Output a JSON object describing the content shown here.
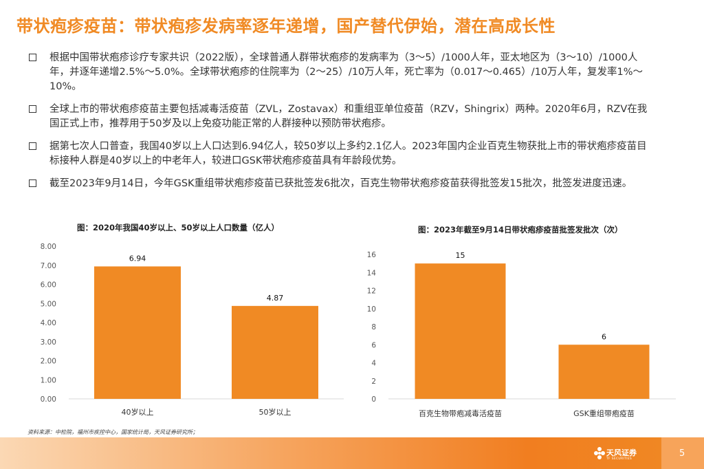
{
  "title": "带状疱疹疫苗：带状疱疹发病率逐年递增，国产替代伊始，潜在高成长性",
  "bullets": [
    "根据中国带状疱疹诊疗专家共识（2022版），全球普通人群带状疱疹的发病率为（3～5）/1000人年，亚太地区为（3～10）/1000人年，并逐年递增2.5%～5.0%。全球带状疱疹的住院率为（2～25）/10万人年，死亡率为（0.017～0.465）/10万人年，复发率1%～10%。",
    "全球上市的带状疱疹疫苗主要包括减毒活疫苗（ZVL，Zostavax）和重组亚单位疫苗（RZV，Shingrix）两种。2020年6月，RZV在我国正式上市，推荐用于50岁及以上免疫功能正常的人群接种以预防带状疱疹。",
    "据第七次人口普查，我国40岁以上人口达到6.94亿人，较50岁以上多约2.1亿人。2023年国内企业百克生物获批上市的带状疱疹疫苗目标接种人群是40岁以上的中老年人，较进口GSK带状疱疹疫苗具有年龄段优势。",
    "截至2023年9月14日，今年GSK重组带状疱疹疫苗已获批签发6批次，百克生物带状疱疹疫苗获得批签发15批次，批签发进度迅速。"
  ],
  "chart_data": [
    {
      "type": "bar",
      "title": "图：2020年我国40岁以上、50岁以上人口数量（亿人）",
      "categories": [
        "40岁以上",
        "50岁以上"
      ],
      "values": [
        6.94,
        4.87
      ],
      "data_labels": [
        "6.94",
        "4.87"
      ],
      "ylim": [
        0,
        8
      ],
      "yticks": [
        "0.00",
        "1.00",
        "2.00",
        "3.00",
        "4.00",
        "5.00",
        "6.00",
        "7.00",
        "8.00"
      ],
      "bar_color": "#f08a24",
      "grid": false
    },
    {
      "type": "bar",
      "title": "图：2023年截至9月14日带状疱疹疫苗批签发批次（次）",
      "categories": [
        "百克生物带疱减毒活疫苗",
        "GSK重组带疱疫苗"
      ],
      "values": [
        15,
        6
      ],
      "data_labels": [
        "15",
        "6"
      ],
      "ylim": [
        0,
        16
      ],
      "yticks": [
        "0",
        "2",
        "4",
        "6",
        "8",
        "10",
        "12",
        "14",
        "16"
      ],
      "bar_color": "#f08a24",
      "grid": false
    }
  ],
  "source": "资料来源：中检院，福州市疾控中心，国家统计局，天风证券研究所；",
  "logo": {
    "name": "天风证券",
    "sub": "TF SECURITIES"
  },
  "page_number": "5",
  "colors": {
    "accent": "#f08a24",
    "text": "#333333"
  }
}
